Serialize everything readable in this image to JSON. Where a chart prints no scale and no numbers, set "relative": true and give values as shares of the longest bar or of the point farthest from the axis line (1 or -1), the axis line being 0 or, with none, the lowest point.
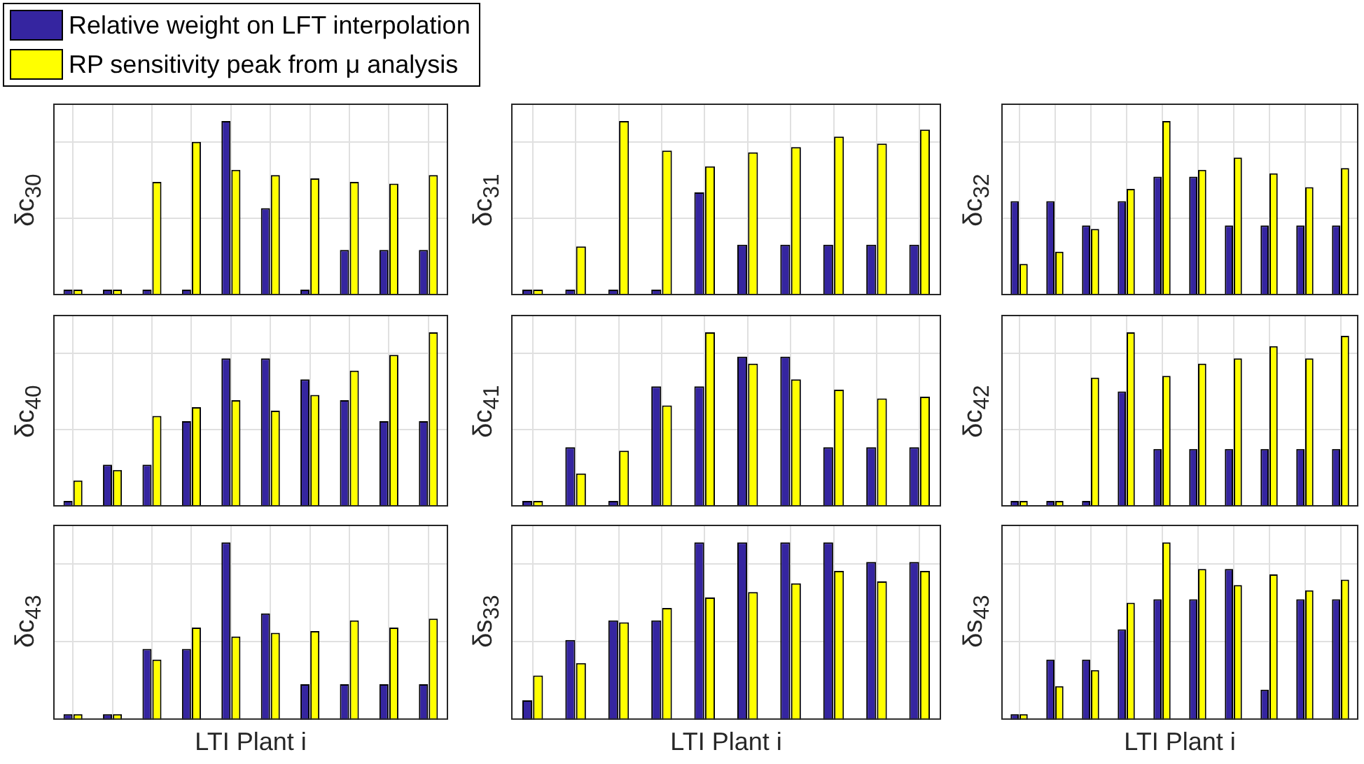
{
  "chart_data": [
    {
      "type": "bar",
      "ylabel": "δc$_{30}$",
      "relative": true,
      "grid": true,
      "tick_labels": false,
      "legend": "top left",
      "categories": [
        null,
        null,
        null,
        null,
        null,
        null,
        null,
        null,
        null,
        null
      ],
      "series": [
        {
          "name": "Relative weight on LFT interpolation",
          "color": "#3525a0",
          "values": [
            0,
            0,
            0,
            0,
            1,
            0.5,
            0,
            0.26,
            0.26,
            0.26
          ]
        },
        {
          "name": "RP sensitivity peak from μ analysis",
          "color": "#ffff00",
          "values": [
            0,
            0,
            0.65,
            0.88,
            0.72,
            0.69,
            0.67,
            0.65,
            0.64,
            0.69
          ]
        }
      ]
    },
    {
      "type": "bar",
      "ylabel": "δc$_{31}$",
      "relative": true,
      "grid": true,
      "tick_labels": false,
      "categories": [
        null,
        null,
        null,
        null,
        null,
        null,
        null,
        null,
        null,
        null
      ],
      "series": [
        {
          "color": "#3525a0",
          "values": [
            0,
            0,
            0,
            0,
            0.59,
            0.29,
            0.29,
            0.29,
            0.29,
            0.29
          ]
        },
        {
          "color": "#ffff00",
          "values": [
            0,
            0.28,
            1,
            0.83,
            0.74,
            0.82,
            0.85,
            0.91,
            0.87,
            0.95
          ]
        }
      ]
    },
    {
      "type": "bar",
      "ylabel": "δc$_{32}$",
      "relative": true,
      "grid": true,
      "tick_labels": false,
      "categories": [
        null,
        null,
        null,
        null,
        null,
        null,
        null,
        null,
        null,
        null
      ],
      "series": [
        {
          "color": "#3525a0",
          "values": [
            0.54,
            0.54,
            0.4,
            0.54,
            0.68,
            0.68,
            0.4,
            0.4,
            0.4,
            0.4
          ]
        },
        {
          "color": "#ffff00",
          "values": [
            0.18,
            0.25,
            0.38,
            0.61,
            1,
            0.72,
            0.79,
            0.7,
            0.62,
            0.73
          ]
        }
      ]
    },
    {
      "type": "bar",
      "ylabel": "δc$_{40}$",
      "relative": true,
      "grid": true,
      "tick_labels": false,
      "categories": [
        null,
        null,
        null,
        null,
        null,
        null,
        null,
        null,
        null,
        null
      ],
      "series": [
        {
          "color": "#3525a0",
          "values": [
            0,
            0.24,
            0.24,
            0.49,
            0.85,
            0.85,
            0.73,
            0.61,
            0.49,
            0.49
          ]
        },
        {
          "color": "#ffff00",
          "values": [
            0.15,
            0.21,
            0.52,
            0.57,
            0.61,
            0.55,
            0.64,
            0.78,
            0.87,
            1
          ]
        }
      ]
    },
    {
      "type": "bar",
      "ylabel": "δc$_{41}$",
      "relative": true,
      "grid": true,
      "tick_labels": false,
      "categories": [
        null,
        null,
        null,
        null,
        null,
        null,
        null,
        null,
        null,
        null
      ],
      "series": [
        {
          "color": "#3525a0",
          "values": [
            0,
            0.34,
            0,
            0.69,
            0.69,
            0.86,
            0.86,
            0.34,
            0.34,
            0.34
          ]
        },
        {
          "color": "#ffff00",
          "values": [
            0,
            0.19,
            0.32,
            0.58,
            1,
            0.82,
            0.73,
            0.67,
            0.62,
            0.63
          ]
        }
      ]
    },
    {
      "type": "bar",
      "ylabel": "δc$_{42}$",
      "relative": true,
      "grid": true,
      "tick_labels": false,
      "categories": [
        null,
        null,
        null,
        null,
        null,
        null,
        null,
        null,
        null,
        null
      ],
      "series": [
        {
          "color": "#3525a0",
          "values": [
            0,
            0,
            0,
            0.66,
            0.33,
            0.33,
            0.33,
            0.33,
            0.33,
            0.33
          ]
        },
        {
          "color": "#ffff00",
          "values": [
            0,
            0,
            0.74,
            1,
            0.75,
            0.82,
            0.85,
            0.92,
            0.85,
            0.98
          ]
        }
      ]
    },
    {
      "type": "bar",
      "ylabel": "δc$_{43}$",
      "xlabel": "LTI Plant i",
      "relative": true,
      "grid": true,
      "tick_labels": false,
      "categories": [
        null,
        null,
        null,
        null,
        null,
        null,
        null,
        null,
        null,
        null
      ],
      "series": [
        {
          "color": "#3525a0",
          "values": [
            0,
            0,
            0.4,
            0.4,
            1,
            0.6,
            0.2,
            0.2,
            0.2,
            0.2
          ]
        },
        {
          "color": "#ffff00",
          "values": [
            0,
            0,
            0.34,
            0.52,
            0.47,
            0.49,
            0.5,
            0.56,
            0.52,
            0.57
          ]
        }
      ]
    },
    {
      "type": "bar",
      "ylabel": "δs$_{33}$",
      "xlabel": "LTI Plant i",
      "relative": true,
      "grid": true,
      "tick_labels": false,
      "categories": [
        null,
        null,
        null,
        null,
        null,
        null,
        null,
        null,
        null,
        null
      ],
      "series": [
        {
          "color": "#3525a0",
          "values": [
            0.11,
            0.45,
            0.56,
            0.56,
            1,
            1,
            1,
            1,
            0.89,
            0.89
          ]
        },
        {
          "color": "#ffff00",
          "values": [
            0.25,
            0.32,
            0.55,
            0.63,
            0.69,
            0.72,
            0.77,
            0.84,
            0.78,
            0.84
          ]
        }
      ]
    },
    {
      "type": "bar",
      "ylabel": "δs$_{43}$",
      "xlabel": "LTI Plant i",
      "relative": true,
      "grid": true,
      "tick_labels": false,
      "categories": [
        null,
        null,
        null,
        null,
        null,
        null,
        null,
        null,
        null,
        null
      ],
      "series": [
        {
          "color": "#3525a0",
          "values": [
            0,
            0.34,
            0.34,
            0.51,
            0.68,
            0.68,
            0.85,
            0.17,
            0.68,
            0.68
          ]
        },
        {
          "color": "#ffff00",
          "values": [
            0,
            0.19,
            0.28,
            0.66,
            1,
            0.85,
            0.76,
            0.82,
            0.73,
            0.79
          ]
        }
      ]
    }
  ]
}
